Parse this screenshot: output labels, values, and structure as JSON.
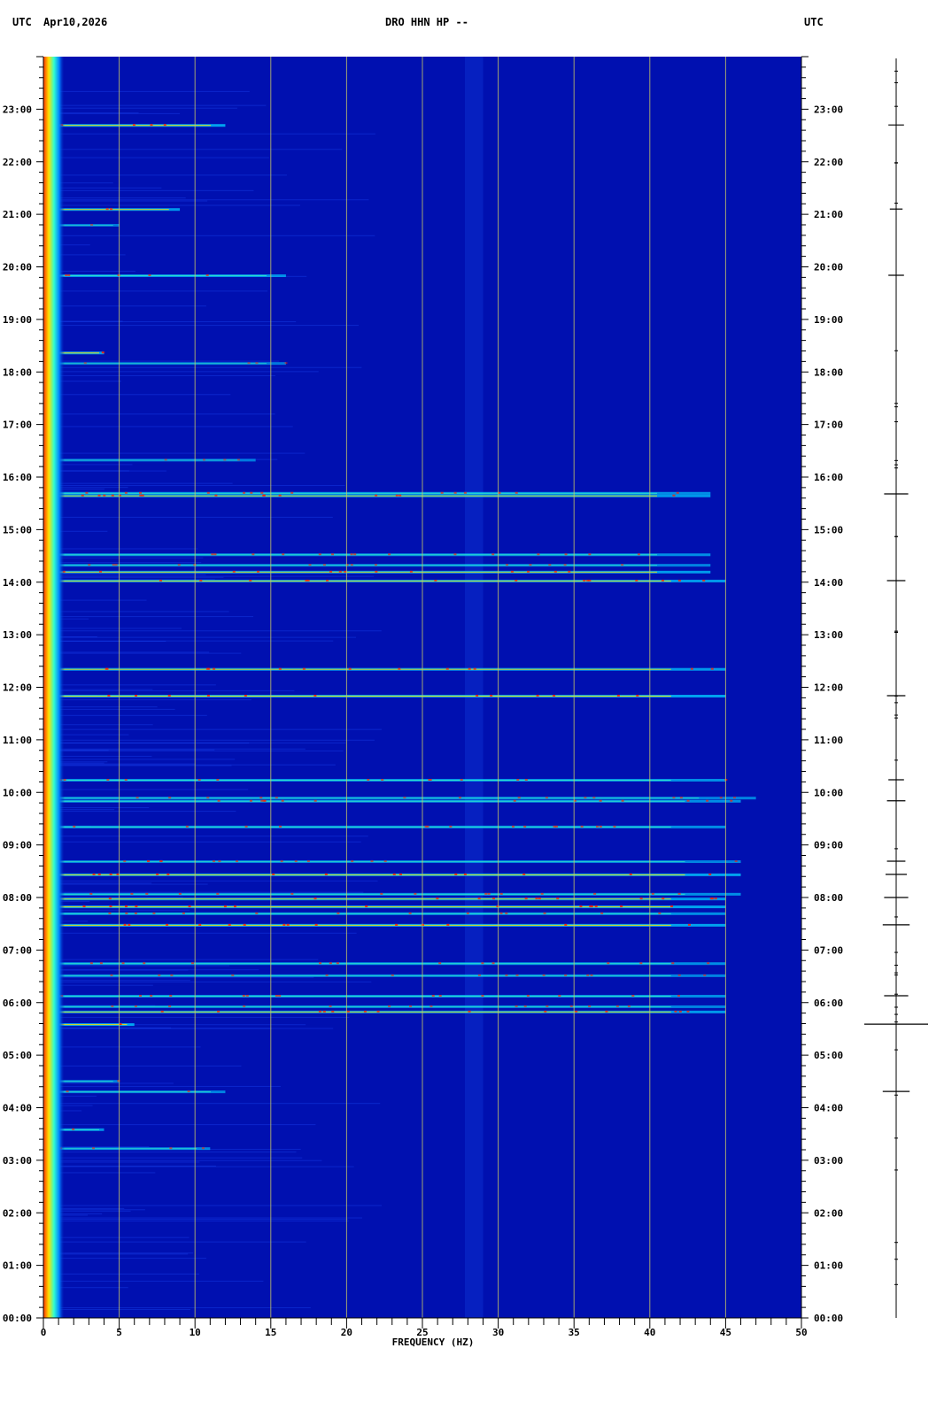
{
  "header": {
    "left_tz": "UTC",
    "date": "Apr10,2026",
    "station": "DRO HHN HP --",
    "right_tz": "UTC"
  },
  "chart_data": {
    "type": "heatmap",
    "title": "DRO HHN HP --",
    "xlabel": "FREQUENCY (HZ)",
    "ylabel": "",
    "xlim": [
      0,
      50
    ],
    "ylim_hours": [
      0,
      24
    ],
    "xticks": [
      "0",
      "5",
      "10",
      "15",
      "20",
      "25",
      "30",
      "35",
      "40",
      "45",
      "50"
    ],
    "yticks": [
      "00:00",
      "01:00",
      "02:00",
      "03:00",
      "04:00",
      "05:00",
      "06:00",
      "07:00",
      "08:00",
      "09:00",
      "10:00",
      "11:00",
      "12:00",
      "13:00",
      "14:00",
      "15:00",
      "16:00",
      "17:00",
      "18:00",
      "19:00",
      "20:00",
      "21:00",
      "22:00",
      "23:00"
    ],
    "grid": true,
    "colors": {
      "background": "#0010b0",
      "low": "#0000a0",
      "mid": "#00c8ff",
      "high": "#ffff00",
      "peak": "#ff0000",
      "gridline": "#c8c864"
    },
    "events": [
      {
        "hour": 22.7,
        "fmax": 12,
        "strength": 0.9
      },
      {
        "hour": 21.1,
        "fmax": 9,
        "strength": 0.8
      },
      {
        "hour": 20.8,
        "fmax": 5,
        "strength": 0.5
      },
      {
        "hour": 19.84,
        "fmax": 16,
        "strength": 0.7
      },
      {
        "hour": 18.37,
        "fmax": 4,
        "strength": 0.9
      },
      {
        "hour": 18.17,
        "fmax": 16,
        "strength": 0.5
      },
      {
        "hour": 16.33,
        "fmax": 14,
        "strength": 0.5
      },
      {
        "hour": 15.7,
        "fmax": 44,
        "strength": 0.7
      },
      {
        "hour": 15.65,
        "fmax": 44,
        "strength": 0.8
      },
      {
        "hour": 14.53,
        "fmax": 44,
        "strength": 0.7
      },
      {
        "hour": 14.33,
        "fmax": 44,
        "strength": 0.6
      },
      {
        "hour": 14.2,
        "fmax": 44,
        "strength": 0.8
      },
      {
        "hour": 14.03,
        "fmax": 45,
        "strength": 0.8
      },
      {
        "hour": 12.35,
        "fmax": 45,
        "strength": 0.8
      },
      {
        "hour": 11.84,
        "fmax": 45,
        "strength": 0.9
      },
      {
        "hour": 10.24,
        "fmax": 45,
        "strength": 0.7
      },
      {
        "hour": 9.9,
        "fmax": 47,
        "strength": 0.6
      },
      {
        "hour": 9.84,
        "fmax": 46,
        "strength": 0.7
      },
      {
        "hour": 9.35,
        "fmax": 45,
        "strength": 0.7
      },
      {
        "hour": 8.69,
        "fmax": 46,
        "strength": 0.6
      },
      {
        "hour": 8.44,
        "fmax": 46,
        "strength": 0.9
      },
      {
        "hour": 8.07,
        "fmax": 46,
        "strength": 0.7
      },
      {
        "hour": 7.98,
        "fmax": 45,
        "strength": 0.8
      },
      {
        "hour": 7.83,
        "fmax": 45,
        "strength": 0.9
      },
      {
        "hour": 7.7,
        "fmax": 45,
        "strength": 0.7
      },
      {
        "hour": 7.48,
        "fmax": 45,
        "strength": 0.9
      },
      {
        "hour": 6.75,
        "fmax": 45,
        "strength": 0.7
      },
      {
        "hour": 6.52,
        "fmax": 45,
        "strength": 0.6
      },
      {
        "hour": 6.13,
        "fmax": 45,
        "strength": 0.7
      },
      {
        "hour": 5.93,
        "fmax": 45,
        "strength": 0.6
      },
      {
        "hour": 5.83,
        "fmax": 45,
        "strength": 0.8
      },
      {
        "hour": 5.59,
        "fmax": 6,
        "strength": 0.9
      },
      {
        "hour": 4.51,
        "fmax": 5,
        "strength": 0.6
      },
      {
        "hour": 4.31,
        "fmax": 12,
        "strength": 0.6
      },
      {
        "hour": 3.59,
        "fmax": 4,
        "strength": 0.7
      },
      {
        "hour": 3.23,
        "fmax": 11,
        "strength": 0.6
      }
    ],
    "trace_spikes": [
      {
        "hour": 22.7,
        "amp": 0.15
      },
      {
        "hour": 21.1,
        "amp": 0.1
      },
      {
        "hour": 19.84,
        "amp": 0.15
      },
      {
        "hour": 15.68,
        "amp": 0.3
      },
      {
        "hour": 14.03,
        "amp": 0.2
      },
      {
        "hour": 11.84,
        "amp": 0.2
      },
      {
        "hour": 10.24,
        "amp": 0.15
      },
      {
        "hour": 9.84,
        "amp": 0.2
      },
      {
        "hour": 8.69,
        "amp": 0.2
      },
      {
        "hour": 8.44,
        "amp": 0.25
      },
      {
        "hour": 8.0,
        "amp": 0.3
      },
      {
        "hour": 7.48,
        "amp": 0.35
      },
      {
        "hour": 6.13,
        "amp": 0.3
      },
      {
        "hour": 5.59,
        "amp": 1.0
      },
      {
        "hour": 4.31,
        "amp": 0.35
      }
    ]
  }
}
